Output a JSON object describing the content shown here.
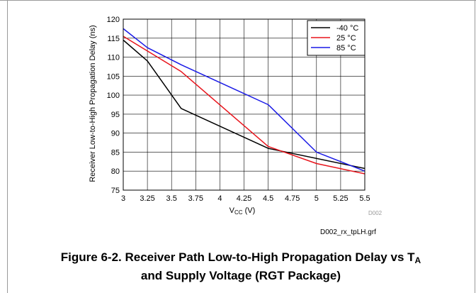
{
  "chart_data": {
    "type": "line",
    "title": "",
    "xlabel_base": "V",
    "xlabel_sub": "CC",
    "xlabel_unit": " (V)",
    "ylabel": "Receiver Low-to-High Propagation Delay (ns)",
    "xlim": [
      3,
      5.5
    ],
    "ylim": [
      75,
      120
    ],
    "xticks": [
      "3",
      "3.25",
      "3.5",
      "3.75",
      "4",
      "4.25",
      "4.5",
      "4.75",
      "5",
      "5.25",
      "5.5"
    ],
    "yticks": [
      "75",
      "80",
      "85",
      "90",
      "95",
      "100",
      "105",
      "110",
      "115",
      "120"
    ],
    "grid": true,
    "legend_position": "top-right",
    "series": [
      {
        "name": "-40 °C",
        "color": "#000000",
        "x": [
          3.0,
          3.25,
          3.6,
          4.5,
          5.5
        ],
        "y": [
          114.5,
          109.0,
          96.5,
          86.0,
          80.7
        ]
      },
      {
        "name": "25 °C",
        "color": "#e8141c",
        "x": [
          3.0,
          3.6,
          4.5,
          5.0,
          5.5
        ],
        "y": [
          115.5,
          106.2,
          86.5,
          82.0,
          79.3
        ]
      },
      {
        "name": "85 °C",
        "color": "#1a1ae6",
        "x": [
          3.0,
          3.25,
          3.6,
          4.5,
          5.0,
          5.5
        ],
        "y": [
          117.5,
          112.5,
          108.0,
          97.5,
          85.0,
          80.0
        ]
      }
    ],
    "source_tag": "D002",
    "filename": "D002_rx_tpLH.grf"
  },
  "caption": {
    "line1": "Figure 6-2. Receiver Path Low-to-High Propagation Delay vs T",
    "line1_sub": "A",
    "line2": "and Supply Voltage (RGT Package)"
  }
}
